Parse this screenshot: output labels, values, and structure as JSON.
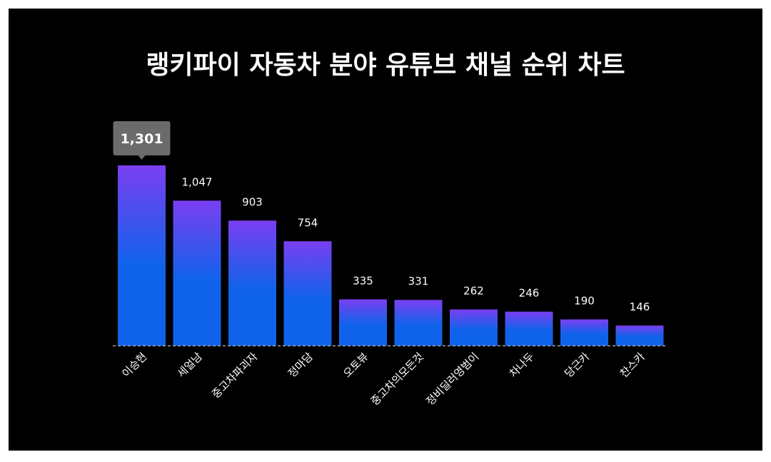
{
  "chart_data": {
    "type": "bar",
    "title": "랭키파이 자동차 분야 유튜브 채널 순위 차트",
    "categories": [
      "이승현",
      "세얼남",
      "중고차파괴자",
      "정마담",
      "오토뷰",
      "중고차의모든것",
      "정비딜러영범이",
      "차나두",
      "당근카",
      "찬스카"
    ],
    "values": [
      1301,
      1047,
      903,
      754,
      335,
      331,
      262,
      246,
      190,
      146
    ],
    "value_labels": [
      "1,301",
      "1,047",
      "903",
      "754",
      "335",
      "331",
      "262",
      "246",
      "190",
      "146"
    ],
    "highlighted_index": 0,
    "xlabel": "",
    "ylabel": "",
    "ylim": [
      0,
      1301
    ],
    "grid": false,
    "colors": {
      "bar_top": "#7a3ff0",
      "bar_bottom": "#0f63ea",
      "tooltip": "#6b6b6b",
      "background": "#000000"
    }
  }
}
